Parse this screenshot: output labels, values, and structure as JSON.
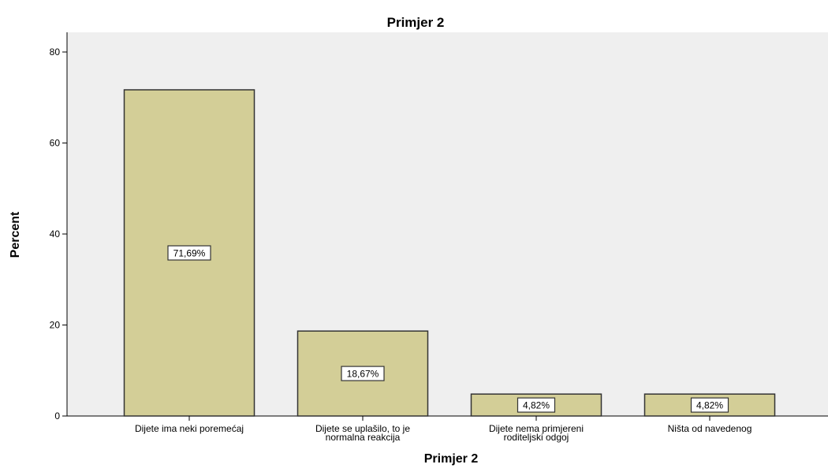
{
  "chart_data": {
    "type": "bar",
    "title": "Primjer 2",
    "xlabel": "Primjer 2",
    "ylabel": "Percent",
    "categories": [
      [
        "Dijete ima neki poremećaj"
      ],
      [
        "Dijete se uplašilo, to je",
        "normalna reakcija"
      ],
      [
        "Dijete nema primjereni",
        "roditeljski odgoj"
      ],
      [
        "Ništa od navedenog"
      ]
    ],
    "values": [
      71.69,
      18.67,
      4.82,
      4.82
    ],
    "data_labels": [
      "71,69%",
      "18,67%",
      "4,82%",
      "4,82%"
    ],
    "ylim": [
      0,
      80
    ],
    "yticks": [
      0,
      20,
      40,
      60,
      80
    ],
    "grid": false,
    "legend": "none",
    "colors": {
      "plot_background": "#efefef",
      "bar_fill": "#d3ce97",
      "bar_stroke": "#333333",
      "axis": "#000000"
    }
  }
}
